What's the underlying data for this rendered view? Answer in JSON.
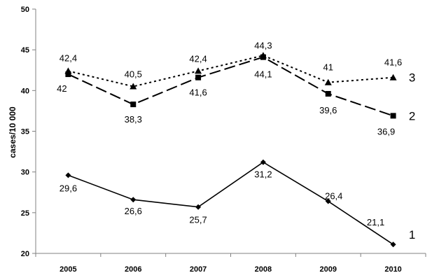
{
  "chart_data": {
    "type": "line",
    "ylabel": "cases/10 000",
    "ylim": [
      20,
      50
    ],
    "yticks": [
      "20",
      "25",
      "30",
      "35",
      "40",
      "45",
      "50"
    ],
    "categories": [
      "2005",
      "2006",
      "2007",
      "2008",
      "2009",
      "2010"
    ],
    "grid": false,
    "series": [
      {
        "name": "1",
        "marker": "diamond",
        "line_style": "solid",
        "values": [
          29.6,
          26.6,
          25.7,
          31.2,
          26.4,
          21.1
        ],
        "labels": [
          "29,6",
          "26,6",
          "25,7",
          "31,2",
          "26,4",
          "21,1"
        ]
      },
      {
        "name": "2",
        "marker": "square",
        "line_style": "dashed",
        "values": [
          42,
          38.3,
          41.6,
          44.1,
          39.6,
          36.9
        ],
        "labels": [
          "42",
          "38,3",
          "41,6",
          "44,1",
          "39,6",
          "36,9"
        ]
      },
      {
        "name": "3",
        "marker": "triangle",
        "line_style": "dotted",
        "values": [
          42.4,
          40.5,
          42.4,
          44.3,
          41,
          41.6
        ],
        "labels": [
          "42,4",
          "40,5",
          "42,4",
          "44,3",
          "41",
          "41,6"
        ]
      }
    ]
  },
  "colors": {
    "line": "#000000",
    "axis": "#808080"
  }
}
